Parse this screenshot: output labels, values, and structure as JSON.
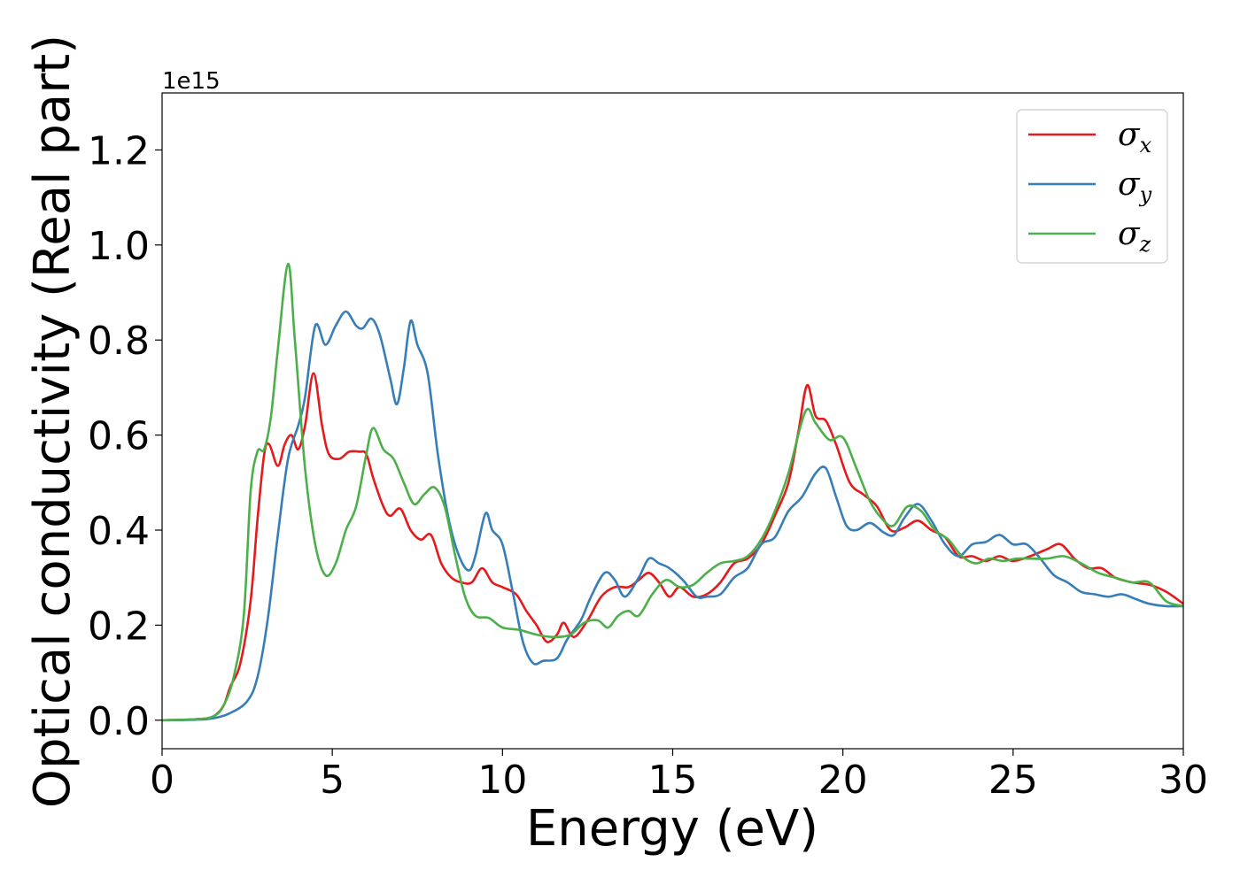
{
  "chart_data": {
    "type": "line",
    "xlabel": "Energy (eV)",
    "ylabel": "Optical conductivity (Real part)",
    "offset_text": "1e15",
    "xlim": [
      0,
      30
    ],
    "ylim": [
      -0.06,
      1.32
    ],
    "x_ticks": [
      0,
      5,
      10,
      15,
      20,
      25,
      30
    ],
    "x_tick_labels": [
      "0",
      "5",
      "10",
      "15",
      "20",
      "25",
      "30"
    ],
    "y_ticks": [
      0.0,
      0.2,
      0.4,
      0.6,
      0.8,
      1.0,
      1.2
    ],
    "y_tick_labels": [
      "0.0",
      "0.2",
      "0.4",
      "0.6",
      "0.8",
      "1.0",
      "1.2"
    ],
    "grid": false,
    "legend_position": "top-right",
    "series": [
      {
        "name": "σx",
        "symbol": "σ",
        "subscript": "x",
        "color": "#e41a1c",
        "points": [
          [
            0,
            0
          ],
          [
            1,
            0.002
          ],
          [
            1.5,
            0.008
          ],
          [
            1.8,
            0.03
          ],
          [
            2.0,
            0.07
          ],
          [
            2.3,
            0.12
          ],
          [
            2.6,
            0.25
          ],
          [
            2.8,
            0.42
          ],
          [
            3.0,
            0.56
          ],
          [
            3.15,
            0.58
          ],
          [
            3.4,
            0.535
          ],
          [
            3.6,
            0.58
          ],
          [
            3.8,
            0.6
          ],
          [
            4.0,
            0.57
          ],
          [
            4.2,
            0.62
          ],
          [
            4.45,
            0.73
          ],
          [
            4.7,
            0.62
          ],
          [
            4.9,
            0.56
          ],
          [
            5.2,
            0.55
          ],
          [
            5.5,
            0.565
          ],
          [
            5.8,
            0.565
          ],
          [
            6.0,
            0.56
          ],
          [
            6.2,
            0.51
          ],
          [
            6.5,
            0.45
          ],
          [
            6.7,
            0.43
          ],
          [
            7.0,
            0.445
          ],
          [
            7.3,
            0.4
          ],
          [
            7.6,
            0.38
          ],
          [
            7.9,
            0.39
          ],
          [
            8.2,
            0.33
          ],
          [
            8.5,
            0.3
          ],
          [
            8.8,
            0.29
          ],
          [
            9.1,
            0.29
          ],
          [
            9.4,
            0.32
          ],
          [
            9.7,
            0.29
          ],
          [
            10.0,
            0.28
          ],
          [
            10.4,
            0.265
          ],
          [
            10.7,
            0.23
          ],
          [
            11.0,
            0.2
          ],
          [
            11.3,
            0.165
          ],
          [
            11.6,
            0.18
          ],
          [
            11.8,
            0.205
          ],
          [
            12.1,
            0.175
          ],
          [
            12.5,
            0.21
          ],
          [
            12.9,
            0.26
          ],
          [
            13.3,
            0.28
          ],
          [
            13.7,
            0.28
          ],
          [
            14.0,
            0.295
          ],
          [
            14.3,
            0.31
          ],
          [
            14.6,
            0.29
          ],
          [
            14.9,
            0.26
          ],
          [
            15.2,
            0.28
          ],
          [
            15.6,
            0.26
          ],
          [
            16.0,
            0.265
          ],
          [
            16.4,
            0.29
          ],
          [
            16.8,
            0.33
          ],
          [
            17.2,
            0.34
          ],
          [
            17.6,
            0.37
          ],
          [
            18.0,
            0.43
          ],
          [
            18.4,
            0.5
          ],
          [
            18.7,
            0.61
          ],
          [
            18.95,
            0.705
          ],
          [
            19.2,
            0.64
          ],
          [
            19.5,
            0.63
          ],
          [
            19.8,
            0.58
          ],
          [
            20.2,
            0.5
          ],
          [
            20.6,
            0.475
          ],
          [
            21.0,
            0.45
          ],
          [
            21.4,
            0.4
          ],
          [
            21.8,
            0.405
          ],
          [
            22.2,
            0.42
          ],
          [
            22.6,
            0.4
          ],
          [
            23.0,
            0.385
          ],
          [
            23.4,
            0.345
          ],
          [
            23.8,
            0.345
          ],
          [
            24.2,
            0.335
          ],
          [
            24.6,
            0.345
          ],
          [
            25.0,
            0.335
          ],
          [
            25.5,
            0.345
          ],
          [
            26.0,
            0.36
          ],
          [
            26.4,
            0.37
          ],
          [
            26.8,
            0.34
          ],
          [
            27.2,
            0.32
          ],
          [
            27.6,
            0.32
          ],
          [
            28.0,
            0.3
          ],
          [
            28.5,
            0.29
          ],
          [
            29.0,
            0.285
          ],
          [
            29.5,
            0.27
          ],
          [
            30.0,
            0.245
          ]
        ]
      },
      {
        "name": "σy",
        "symbol": "σ",
        "subscript": "y",
        "color": "#377eb8",
        "points": [
          [
            0,
            0
          ],
          [
            1,
            0.001
          ],
          [
            1.5,
            0.004
          ],
          [
            2.0,
            0.015
          ],
          [
            2.5,
            0.04
          ],
          [
            2.8,
            0.09
          ],
          [
            3.1,
            0.21
          ],
          [
            3.4,
            0.39
          ],
          [
            3.7,
            0.55
          ],
          [
            4.0,
            0.62
          ],
          [
            4.2,
            0.68
          ],
          [
            4.5,
            0.83
          ],
          [
            4.8,
            0.79
          ],
          [
            5.1,
            0.83
          ],
          [
            5.4,
            0.86
          ],
          [
            5.7,
            0.83
          ],
          [
            5.9,
            0.825
          ],
          [
            6.15,
            0.845
          ],
          [
            6.4,
            0.81
          ],
          [
            6.7,
            0.72
          ],
          [
            6.9,
            0.665
          ],
          [
            7.1,
            0.74
          ],
          [
            7.3,
            0.84
          ],
          [
            7.5,
            0.79
          ],
          [
            7.8,
            0.73
          ],
          [
            8.1,
            0.56
          ],
          [
            8.4,
            0.43
          ],
          [
            8.7,
            0.35
          ],
          [
            9.0,
            0.315
          ],
          [
            9.2,
            0.345
          ],
          [
            9.5,
            0.435
          ],
          [
            9.7,
            0.4
          ],
          [
            10.0,
            0.37
          ],
          [
            10.3,
            0.27
          ],
          [
            10.6,
            0.165
          ],
          [
            10.9,
            0.12
          ],
          [
            11.2,
            0.125
          ],
          [
            11.6,
            0.13
          ],
          [
            11.9,
            0.17
          ],
          [
            12.3,
            0.21
          ],
          [
            12.6,
            0.26
          ],
          [
            13.0,
            0.31
          ],
          [
            13.3,
            0.295
          ],
          [
            13.6,
            0.26
          ],
          [
            14.0,
            0.3
          ],
          [
            14.3,
            0.34
          ],
          [
            14.6,
            0.33
          ],
          [
            14.9,
            0.32
          ],
          [
            15.3,
            0.295
          ],
          [
            15.7,
            0.26
          ],
          [
            16.0,
            0.26
          ],
          [
            16.4,
            0.265
          ],
          [
            16.8,
            0.3
          ],
          [
            17.2,
            0.32
          ],
          [
            17.6,
            0.37
          ],
          [
            18.0,
            0.385
          ],
          [
            18.4,
            0.44
          ],
          [
            18.8,
            0.47
          ],
          [
            19.2,
            0.52
          ],
          [
            19.5,
            0.53
          ],
          [
            19.8,
            0.47
          ],
          [
            20.1,
            0.41
          ],
          [
            20.4,
            0.4
          ],
          [
            20.8,
            0.415
          ],
          [
            21.2,
            0.395
          ],
          [
            21.5,
            0.39
          ],
          [
            21.8,
            0.425
          ],
          [
            22.2,
            0.455
          ],
          [
            22.6,
            0.42
          ],
          [
            23.0,
            0.37
          ],
          [
            23.4,
            0.345
          ],
          [
            23.8,
            0.37
          ],
          [
            24.2,
            0.375
          ],
          [
            24.6,
            0.39
          ],
          [
            25.0,
            0.37
          ],
          [
            25.4,
            0.37
          ],
          [
            25.8,
            0.34
          ],
          [
            26.2,
            0.305
          ],
          [
            26.6,
            0.29
          ],
          [
            27.0,
            0.27
          ],
          [
            27.4,
            0.265
          ],
          [
            27.8,
            0.26
          ],
          [
            28.2,
            0.265
          ],
          [
            28.6,
            0.255
          ],
          [
            29.0,
            0.245
          ],
          [
            29.5,
            0.24
          ],
          [
            30.0,
            0.24
          ]
        ]
      },
      {
        "name": "σz",
        "symbol": "σ",
        "subscript": "z",
        "color": "#4daf4a",
        "points": [
          [
            0,
            0
          ],
          [
            1,
            0.002
          ],
          [
            1.5,
            0.008
          ],
          [
            1.8,
            0.03
          ],
          [
            2.1,
            0.09
          ],
          [
            2.4,
            0.22
          ],
          [
            2.6,
            0.48
          ],
          [
            2.8,
            0.565
          ],
          [
            3.0,
            0.57
          ],
          [
            3.2,
            0.64
          ],
          [
            3.4,
            0.78
          ],
          [
            3.7,
            0.96
          ],
          [
            3.9,
            0.8
          ],
          [
            4.2,
            0.53
          ],
          [
            4.5,
            0.37
          ],
          [
            4.8,
            0.305
          ],
          [
            5.1,
            0.33
          ],
          [
            5.4,
            0.4
          ],
          [
            5.7,
            0.45
          ],
          [
            6.0,
            0.56
          ],
          [
            6.2,
            0.615
          ],
          [
            6.5,
            0.57
          ],
          [
            6.8,
            0.55
          ],
          [
            7.1,
            0.5
          ],
          [
            7.4,
            0.455
          ],
          [
            7.7,
            0.475
          ],
          [
            8.0,
            0.49
          ],
          [
            8.3,
            0.45
          ],
          [
            8.6,
            0.35
          ],
          [
            8.9,
            0.26
          ],
          [
            9.2,
            0.22
          ],
          [
            9.6,
            0.215
          ],
          [
            10.0,
            0.195
          ],
          [
            10.5,
            0.19
          ],
          [
            11.0,
            0.18
          ],
          [
            11.5,
            0.175
          ],
          [
            12.0,
            0.18
          ],
          [
            12.4,
            0.205
          ],
          [
            12.8,
            0.21
          ],
          [
            13.1,
            0.195
          ],
          [
            13.4,
            0.22
          ],
          [
            13.7,
            0.23
          ],
          [
            14.0,
            0.22
          ],
          [
            14.4,
            0.265
          ],
          [
            14.8,
            0.295
          ],
          [
            15.2,
            0.28
          ],
          [
            15.6,
            0.285
          ],
          [
            16.0,
            0.31
          ],
          [
            16.4,
            0.33
          ],
          [
            16.8,
            0.335
          ],
          [
            17.2,
            0.345
          ],
          [
            17.6,
            0.38
          ],
          [
            18.0,
            0.44
          ],
          [
            18.4,
            0.52
          ],
          [
            18.9,
            0.65
          ],
          [
            19.2,
            0.625
          ],
          [
            19.6,
            0.59
          ],
          [
            20.0,
            0.595
          ],
          [
            20.4,
            0.53
          ],
          [
            20.8,
            0.46
          ],
          [
            21.2,
            0.42
          ],
          [
            21.5,
            0.41
          ],
          [
            21.9,
            0.45
          ],
          [
            22.3,
            0.44
          ],
          [
            22.7,
            0.4
          ],
          [
            23.1,
            0.38
          ],
          [
            23.5,
            0.345
          ],
          [
            23.9,
            0.33
          ],
          [
            24.3,
            0.34
          ],
          [
            24.7,
            0.335
          ],
          [
            25.1,
            0.34
          ],
          [
            25.5,
            0.34
          ],
          [
            26.0,
            0.34
          ],
          [
            26.5,
            0.345
          ],
          [
            27.0,
            0.33
          ],
          [
            27.5,
            0.31
          ],
          [
            28.0,
            0.3
          ],
          [
            28.5,
            0.29
          ],
          [
            29.0,
            0.29
          ],
          [
            29.5,
            0.25
          ],
          [
            30.0,
            0.24
          ]
        ]
      }
    ]
  }
}
